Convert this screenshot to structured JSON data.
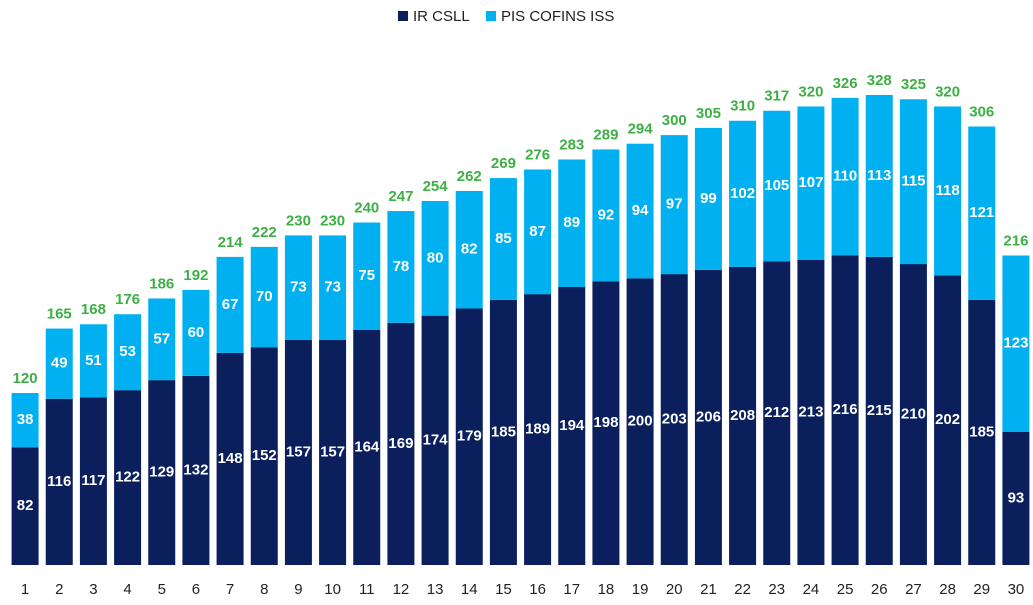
{
  "chart_data": {
    "type": "stacked_bar",
    "categories": [
      "1",
      "2",
      "3",
      "4",
      "5",
      "6",
      "7",
      "8",
      "9",
      "10",
      "11",
      "12",
      "13",
      "14",
      "15",
      "16",
      "17",
      "18",
      "19",
      "20",
      "21",
      "22",
      "23",
      "24",
      "25",
      "26",
      "27",
      "28",
      "29",
      "30"
    ],
    "series": [
      {
        "name": "IR CSLL",
        "color": "#0b1f5c",
        "values": [
          82,
          116,
          117,
          122,
          129,
          132,
          148,
          152,
          157,
          157,
          164,
          169,
          174,
          179,
          185,
          189,
          194,
          198,
          200,
          203,
          206,
          208,
          212,
          213,
          216,
          215,
          210,
          202,
          185,
          93
        ]
      },
      {
        "name": "PIS COFINS ISS",
        "color": "#00b0f0",
        "values": [
          38,
          49,
          51,
          53,
          57,
          60,
          67,
          70,
          73,
          73,
          75,
          78,
          80,
          82,
          85,
          87,
          89,
          92,
          94,
          97,
          99,
          102,
          105,
          107,
          110,
          113,
          115,
          118,
          121,
          123
        ]
      }
    ],
    "totals": [
      120,
      165,
      168,
      176,
      186,
      192,
      214,
      222,
      230,
      230,
      240,
      247,
      254,
      262,
      269,
      276,
      283,
      289,
      294,
      300,
      305,
      310,
      317,
      320,
      326,
      328,
      325,
      320,
      306,
      216
    ],
    "legend": "top"
  }
}
